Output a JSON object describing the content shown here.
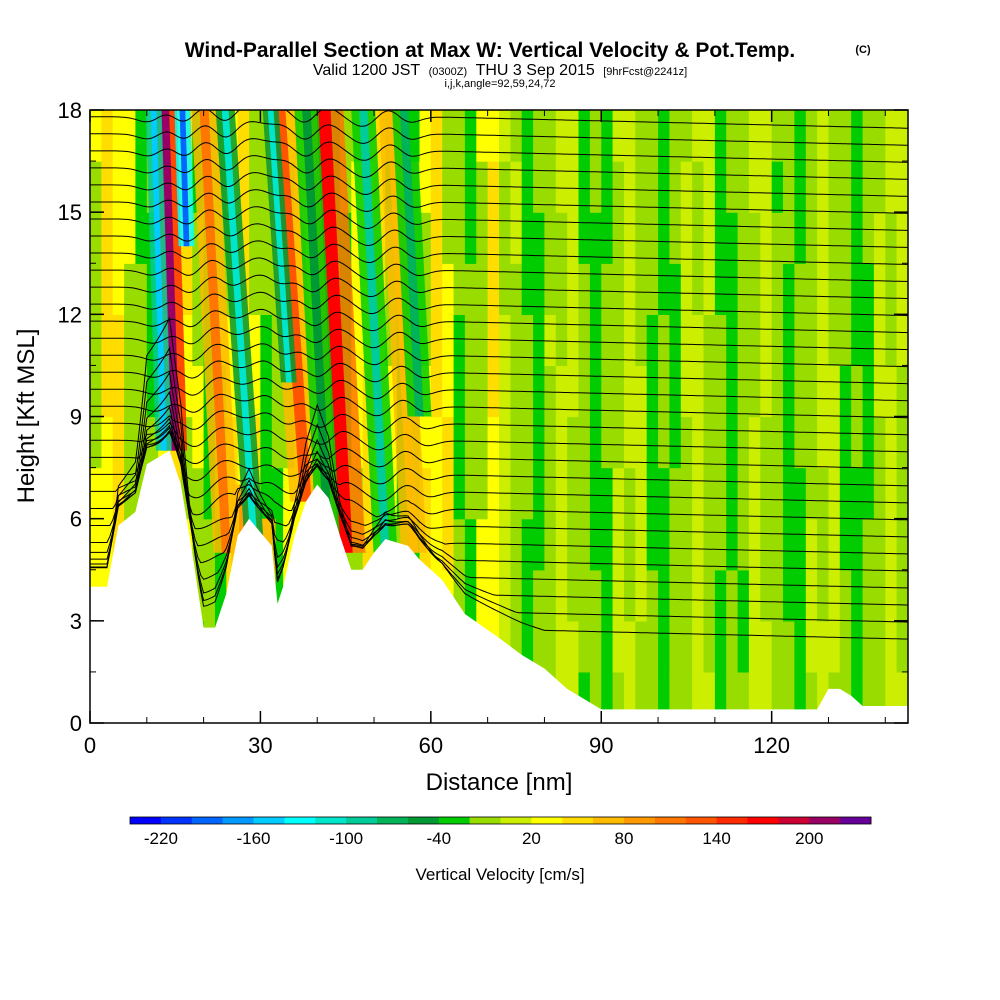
{
  "title": {
    "main": "Wind-Parallel Section at Max W: Vertical Velocity & Pot.Temp.",
    "copyright": "(C)",
    "valid_prefix": "Valid 1200 JST",
    "valid_utc": "(0300Z)",
    "valid_date": "THU 3 Sep 2015",
    "forecast": "[9hrFcst@2241z]",
    "params": "i,j,k,angle=92,59,24,72"
  },
  "chart_data": {
    "type": "heatmap",
    "xlabel": "Distance [nm]",
    "ylabel": "Height [Kft MSL]",
    "xlim": [
      0,
      144
    ],
    "ylim": [
      0,
      18
    ],
    "xticks": [
      "0",
      "30",
      "60",
      "90",
      "120"
    ],
    "xtick_values": [
      0,
      30,
      60,
      90,
      120
    ],
    "yticks": [
      "0",
      "3",
      "6",
      "9",
      "12",
      "15",
      "18"
    ],
    "ytick_values": [
      0,
      3,
      6,
      9,
      12,
      15,
      18
    ],
    "x_minor_step": 10,
    "y_minor_step": 1.5,
    "colorbar": {
      "title": "Vertical Velocity [cm/s]",
      "levels": [
        -240,
        -220,
        -200,
        -180,
        -160,
        -140,
        -120,
        -100,
        -80,
        -60,
        -40,
        -20,
        0,
        20,
        40,
        60,
        80,
        100,
        120,
        140,
        160,
        180,
        200,
        220,
        240
      ],
      "colors": [
        "#0000ff",
        "#0033ff",
        "#0066ff",
        "#0099ff",
        "#00ccff",
        "#00ffff",
        "#00e6cc",
        "#00cc99",
        "#00b359",
        "#009933",
        "#00cc00",
        "#99dd00",
        "#ccee00",
        "#ffff00",
        "#ffdd00",
        "#ffbb00",
        "#ff9900",
        "#ff7700",
        "#ff5500",
        "#ff2a00",
        "#ff0000",
        "#cc0033",
        "#990066",
        "#660099"
      ],
      "labels": [
        "-220",
        "-160",
        "-100",
        "-40",
        "20",
        "80",
        "140",
        "200"
      ],
      "label_values": [
        -220,
        -160,
        -100,
        -40,
        20,
        80,
        140,
        200
      ]
    },
    "terrain": [
      [
        0,
        4
      ],
      [
        3,
        4
      ],
      [
        5,
        5.8
      ],
      [
        8,
        6.2
      ],
      [
        10,
        7.6
      ],
      [
        12,
        7.8
      ],
      [
        14,
        8
      ],
      [
        16,
        7
      ],
      [
        18,
        5
      ],
      [
        20,
        2.8
      ],
      [
        22,
        2.8
      ],
      [
        24,
        3.8
      ],
      [
        26,
        5.5
      ],
      [
        28,
        6
      ],
      [
        30,
        5.6
      ],
      [
        32,
        5.2
      ],
      [
        33,
        3.5
      ],
      [
        34,
        4
      ],
      [
        36,
        5.5
      ],
      [
        38,
        6.5
      ],
      [
        40,
        7
      ],
      [
        42,
        6.6
      ],
      [
        44,
        5.5
      ],
      [
        46,
        4.5
      ],
      [
        48,
        4.5
      ],
      [
        50,
        5
      ],
      [
        52,
        5.4
      ],
      [
        56,
        5.2
      ],
      [
        58,
        4.8
      ],
      [
        62,
        4.2
      ],
      [
        66,
        3.2
      ],
      [
        72,
        2.5
      ],
      [
        76,
        2
      ],
      [
        80,
        1.6
      ],
      [
        84,
        1
      ],
      [
        90,
        0.4
      ],
      [
        120,
        0.4
      ],
      [
        128,
        0.4
      ],
      [
        130,
        1
      ],
      [
        132,
        1
      ],
      [
        134,
        0.8
      ],
      [
        136,
        0.5
      ],
      [
        144,
        0.5
      ]
    ],
    "updraft_bands": [
      {
        "x": 15,
        "w": 1.5,
        "bottom": 8,
        "top": 18,
        "slope": -0.18,
        "value": 210
      },
      {
        "x": 24,
        "w": 1.6,
        "bottom": 5,
        "top": 18,
        "slope": -0.3,
        "value": 110
      },
      {
        "x": 38,
        "w": 2.0,
        "bottom": 6.5,
        "top": 18,
        "slope": -0.4,
        "value": 120
      },
      {
        "x": 45,
        "w": 2.5,
        "bottom": 5,
        "top": 18,
        "slope": -0.3,
        "value": 160
      },
      {
        "x": 57,
        "w": 1.6,
        "bottom": 5,
        "top": 18,
        "slope": -0.3,
        "value": 60
      },
      {
        "x": 27,
        "w": 1.5,
        "bottom": 2.5,
        "top": 7,
        "slope": 0.0,
        "value": 90
      },
      {
        "x": 31,
        "w": 1.2,
        "bottom": 3.5,
        "top": 6,
        "slope": 0.0,
        "value": 70
      }
    ],
    "downdraft_bands": [
      {
        "x": 13,
        "w": 1.0,
        "bottom": 8,
        "top": 18,
        "slope": -0.18,
        "value": -150
      },
      {
        "x": 17,
        "w": 1.0,
        "bottom": 14,
        "top": 18,
        "slope": -0.18,
        "value": -200
      },
      {
        "x": 29,
        "w": 1.2,
        "bottom": 5,
        "top": 18,
        "slope": -0.4,
        "value": -110
      },
      {
        "x": 35,
        "w": 1.0,
        "bottom": 10,
        "top": 18,
        "slope": -0.4,
        "value": -120
      },
      {
        "x": 42,
        "w": 1.5,
        "bottom": 5,
        "top": 18,
        "slope": -0.3,
        "value": -60
      },
      {
        "x": 52,
        "w": 1.5,
        "bottom": 5,
        "top": 18,
        "slope": -0.3,
        "value": -90
      },
      {
        "x": 58,
        "w": 1.5,
        "bottom": 9,
        "top": 18,
        "slope": -0.3,
        "value": -70
      }
    ],
    "isentrope_levels": [
      2.8,
      3.3,
      3.8,
      4.3,
      4.8,
      5.3,
      5.8,
      6.3,
      6.8,
      7.3,
      7.8,
      8.3,
      8.8,
      9.3,
      9.8,
      10.3,
      10.8,
      11.3,
      11.8,
      12.3,
      12.8,
      13.3,
      13.8,
      14.3,
      14.8,
      15.3,
      15.8,
      16.3,
      16.8,
      17.3,
      17.8
    ]
  }
}
